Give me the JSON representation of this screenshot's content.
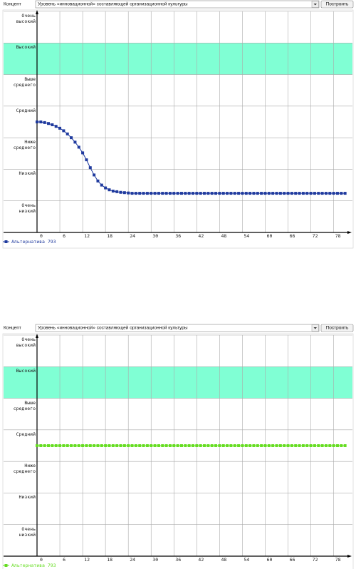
{
  "toolbars": [
    {
      "label": "Концепт",
      "value": "Уровень «инновационной» составляющей организационной культуры",
      "button": "Построить"
    },
    {
      "label": "Концепт",
      "value": "Уровень «инновационной» составляющей организационной культуры",
      "button": "Построить"
    }
  ],
  "chart_data": [
    {
      "type": "line",
      "xlim": [
        0,
        82
      ],
      "ylim": [
        0,
        7
      ],
      "xticks": [
        0,
        6,
        12,
        18,
        24,
        30,
        36,
        42,
        48,
        54,
        60,
        66,
        72,
        78
      ],
      "yticks": [
        {
          "value": 7,
          "label": "Очень высокий"
        },
        {
          "value": 6,
          "label": "Высокий"
        },
        {
          "value": 5,
          "label": "Выше среднего"
        },
        {
          "value": 4,
          "label": "Средний"
        },
        {
          "value": 3,
          "label": "Ниже среднего"
        },
        {
          "value": 2,
          "label": "Низкий"
        },
        {
          "value": 1,
          "label": "Очень низкий"
        }
      ],
      "highlight_band": [
        5,
        6
      ],
      "band_color": "#80ffd4",
      "grid": true,
      "x": [
        0,
        1,
        2,
        3,
        4,
        5,
        6,
        7,
        8,
        9,
        10,
        11,
        12,
        13,
        14,
        15,
        16,
        17,
        18,
        19,
        20,
        21,
        22,
        23,
        24,
        25,
        26,
        27,
        28,
        29,
        30,
        31,
        32,
        33,
        34,
        35,
        36,
        37,
        38,
        39,
        40,
        41,
        42,
        43,
        44,
        45,
        46,
        47,
        48,
        49,
        50,
        51,
        52,
        53,
        54,
        55,
        56,
        57,
        58,
        59,
        60,
        61,
        62,
        63,
        64,
        65,
        66,
        67,
        68,
        69,
        70,
        71,
        72,
        73,
        74,
        75,
        76,
        77,
        78,
        79,
        80,
        81
      ],
      "series": [
        {
          "name": "Альтернатива 793",
          "color": "#1f3a9e",
          "values": [
            3.5,
            3.5,
            3.48,
            3.45,
            3.41,
            3.36,
            3.3,
            3.22,
            3.12,
            3.0,
            2.86,
            2.7,
            2.52,
            2.3,
            2.05,
            1.82,
            1.63,
            1.5,
            1.41,
            1.35,
            1.31,
            1.29,
            1.27,
            1.26,
            1.25,
            1.24,
            1.24,
            1.24,
            1.24,
            1.24,
            1.24,
            1.24,
            1.24,
            1.24,
            1.24,
            1.24,
            1.24,
            1.24,
            1.24,
            1.24,
            1.24,
            1.24,
            1.24,
            1.24,
            1.24,
            1.24,
            1.24,
            1.24,
            1.24,
            1.24,
            1.24,
            1.24,
            1.24,
            1.24,
            1.24,
            1.24,
            1.24,
            1.24,
            1.24,
            1.24,
            1.24,
            1.24,
            1.24,
            1.24,
            1.24,
            1.24,
            1.24,
            1.24,
            1.24,
            1.24,
            1.24,
            1.24,
            1.24,
            1.24,
            1.24,
            1.24,
            1.24,
            1.24,
            1.24,
            1.24,
            1.24,
            1.24
          ]
        }
      ]
    },
    {
      "type": "line",
      "xlim": [
        0,
        82
      ],
      "ylim": [
        0,
        7
      ],
      "xticks": [
        0,
        6,
        12,
        18,
        24,
        30,
        36,
        42,
        48,
        54,
        60,
        66,
        72,
        78
      ],
      "yticks": [
        {
          "value": 7,
          "label": "Очень высокий"
        },
        {
          "value": 6,
          "label": "Высокий"
        },
        {
          "value": 5,
          "label": "Выше среднего"
        },
        {
          "value": 4,
          "label": "Средний"
        },
        {
          "value": 3,
          "label": "Ниже среднего"
        },
        {
          "value": 2,
          "label": "Низкий"
        },
        {
          "value": 1,
          "label": "Очень низкий"
        }
      ],
      "highlight_band": [
        5,
        6
      ],
      "band_color": "#80ffd4",
      "grid": true,
      "x": [
        0,
        1,
        2,
        3,
        4,
        5,
        6,
        7,
        8,
        9,
        10,
        11,
        12,
        13,
        14,
        15,
        16,
        17,
        18,
        19,
        20,
        21,
        22,
        23,
        24,
        25,
        26,
        27,
        28,
        29,
        30,
        31,
        32,
        33,
        34,
        35,
        36,
        37,
        38,
        39,
        40,
        41,
        42,
        43,
        44,
        45,
        46,
        47,
        48,
        49,
        50,
        51,
        52,
        53,
        54,
        55,
        56,
        57,
        58,
        59,
        60,
        61,
        62,
        63,
        64,
        65,
        66,
        67,
        68,
        69,
        70,
        71,
        72,
        73,
        74,
        75,
        76,
        77,
        78,
        79,
        80,
        81
      ],
      "series": [
        {
          "name": "Альтернатива 793",
          "color": "#66dd22",
          "values": [
            3.5,
            3.5,
            3.5,
            3.5,
            3.5,
            3.5,
            3.5,
            3.5,
            3.5,
            3.5,
            3.5,
            3.5,
            3.5,
            3.5,
            3.5,
            3.5,
            3.5,
            3.5,
            3.5,
            3.5,
            3.5,
            3.5,
            3.5,
            3.5,
            3.5,
            3.5,
            3.5,
            3.5,
            3.5,
            3.5,
            3.5,
            3.5,
            3.5,
            3.5,
            3.5,
            3.5,
            3.5,
            3.5,
            3.5,
            3.5,
            3.5,
            3.5,
            3.5,
            3.5,
            3.5,
            3.5,
            3.5,
            3.5,
            3.5,
            3.5,
            3.5,
            3.5,
            3.5,
            3.5,
            3.5,
            3.5,
            3.5,
            3.5,
            3.5,
            3.5,
            3.5,
            3.5,
            3.5,
            3.5,
            3.5,
            3.5,
            3.5,
            3.5,
            3.5,
            3.5,
            3.5,
            3.5,
            3.5,
            3.5,
            3.5,
            3.5,
            3.5,
            3.5,
            3.5,
            3.5,
            3.5,
            3.5
          ]
        }
      ]
    }
  ]
}
